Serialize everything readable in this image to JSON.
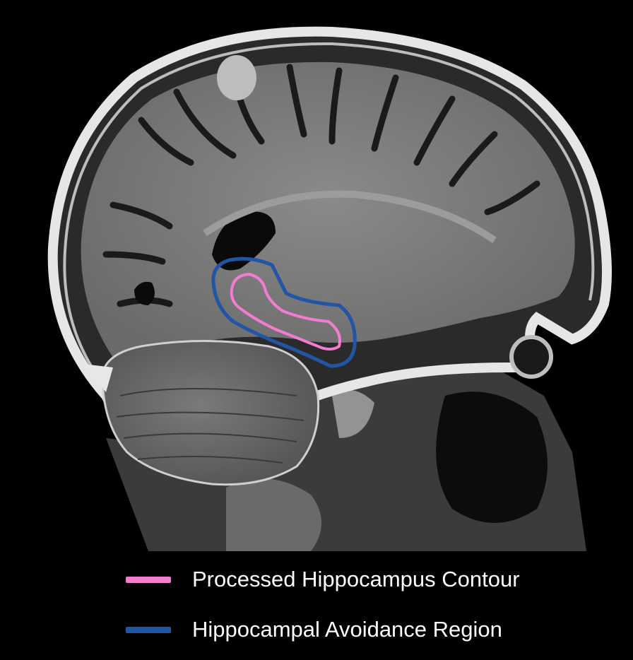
{
  "legend": {
    "items": [
      {
        "label": "Processed Hippocampus Contour",
        "color": "#f27ccf"
      },
      {
        "label": "Hippocampal Avoidance Region",
        "color": "#2156a6"
      }
    ]
  },
  "colors": {
    "background": "#000000",
    "hippocampus_contour": "#f27ccf",
    "avoidance_region": "#2156a6"
  }
}
